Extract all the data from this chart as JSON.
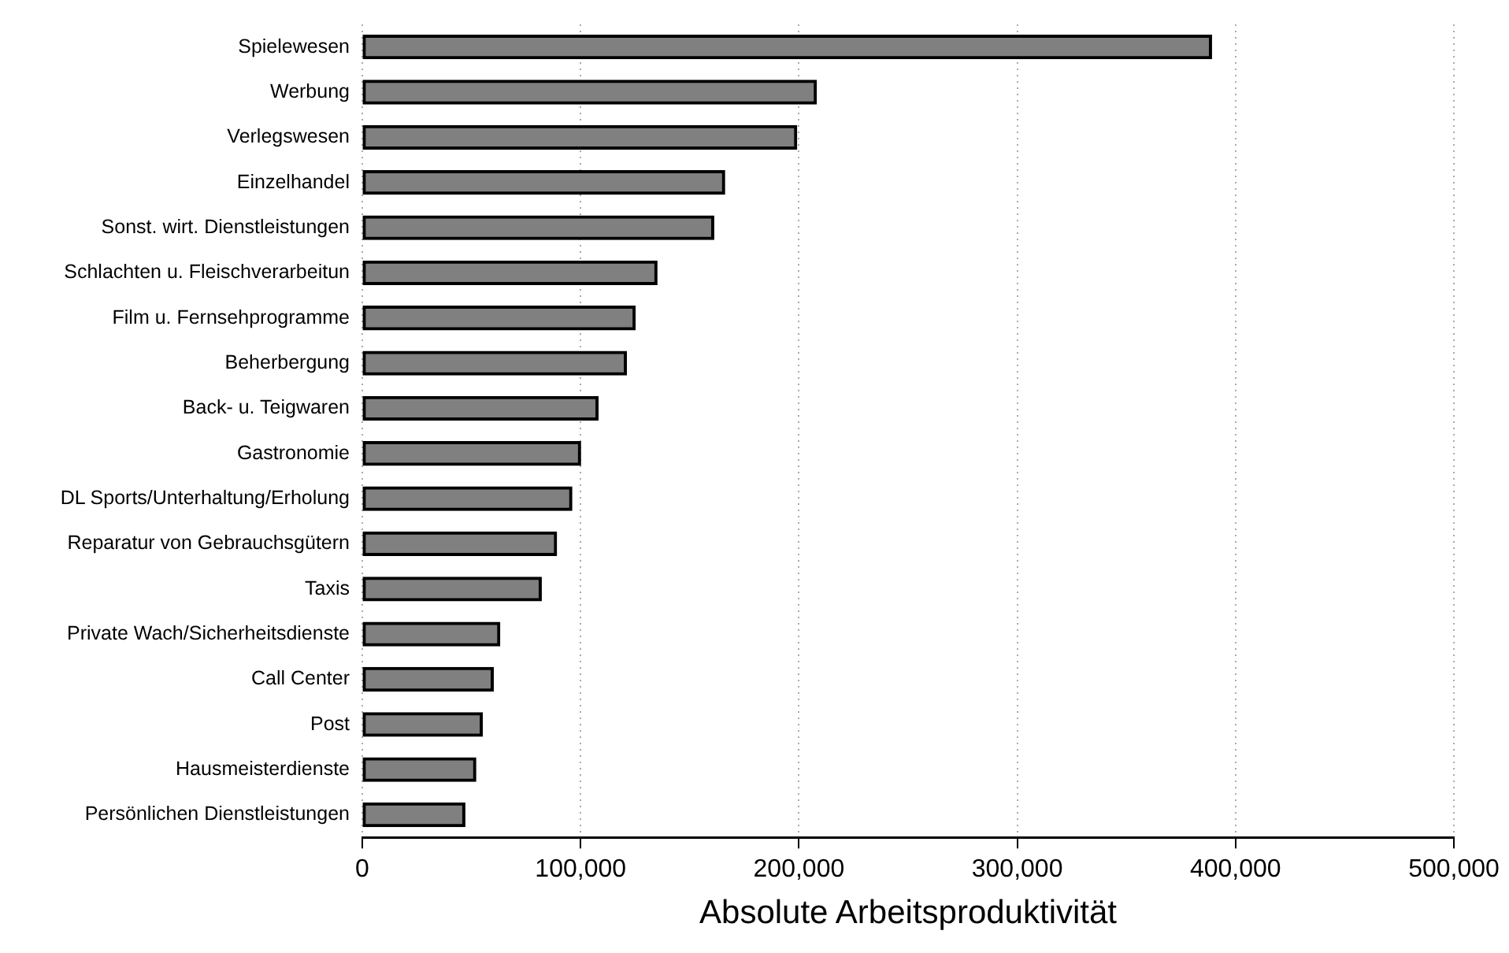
{
  "chart_data": {
    "type": "bar",
    "orientation": "horizontal",
    "xlabel": "Absolute Arbeitsproduktivität",
    "categories": [
      "Spielewesen",
      "Werbung",
      "Verlegswesen",
      "Einzelhandel",
      "Sonst. wirt. Dienstleistungen",
      "Schlachten u. Fleischverarbeitun",
      "Film u. Fernsehprogramme",
      "Beherbergung",
      "Back- u. Teigwaren",
      "Gastronomie",
      "DL Sports/Unterhaltung/Erholung",
      "Reparatur von Gebrauchsgütern",
      "Taxis",
      "Private Wach/Sicherheitsdienste",
      "Call Center",
      "Post",
      "Hausmeisterdienste",
      "Persönlichen Dienstleistungen"
    ],
    "values": [
      389000,
      208000,
      199000,
      166000,
      161000,
      135000,
      125000,
      121000,
      108000,
      100000,
      96000,
      89000,
      82000,
      63000,
      60000,
      55000,
      52000,
      47000
    ],
    "color": "#808080",
    "xlim": [
      0,
      500000
    ],
    "xticks": [
      0,
      {
        "value": 100000,
        "label": "100,000"
      },
      {
        "value": 200000,
        "label": "200,000"
      },
      {
        "value": 300000,
        "label": "300,000"
      },
      {
        "value": 400000,
        "label": "400,000"
      },
      {
        "value": 500000,
        "label": "500,000"
      }
    ],
    "grid": "x",
    "legend": false
  }
}
